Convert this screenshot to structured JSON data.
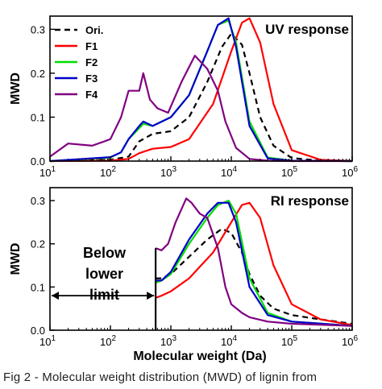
{
  "caption": "Fig 2 - Molecular weight distribution (MWD) of lignin from",
  "x_label": "Molecular weight (Da)",
  "x_ticks": [
    "10",
    "10",
    "10",
    "10",
    "10",
    "10"
  ],
  "x_tick_exponents": [
    "1",
    "2",
    "3",
    "4",
    "5",
    "6"
  ],
  "chart_data": [
    {
      "type": "line",
      "title": "UV response",
      "xlabel": "Molecular weight (Da)",
      "ylabel": "MWD",
      "xscale": "log",
      "xlim": [
        10,
        1000000
      ],
      "ylim": [
        0,
        0.33
      ],
      "yticks": [
        "0.0",
        "0.1",
        "0.2",
        "0.3"
      ],
      "legend": "top-left",
      "series": [
        {
          "name": "Ori.",
          "color": "#000000",
          "dash": true,
          "x": [
            10,
            100,
            200,
            300,
            500,
            1000,
            2000,
            4000,
            7000,
            10000,
            15000,
            20000,
            30000,
            50000,
            100000,
            300000,
            1000000
          ],
          "y": [
            0,
            0.003,
            0.01,
            0.045,
            0.062,
            0.068,
            0.1,
            0.18,
            0.26,
            0.29,
            0.265,
            0.2,
            0.1,
            0.035,
            0.007,
            0.001,
            0
          ]
        },
        {
          "name": "F1",
          "color": "#ff0000",
          "x": [
            10,
            100,
            200,
            300,
            500,
            1000,
            2000,
            5000,
            10000,
            15000,
            20000,
            30000,
            50000,
            100000,
            300000,
            1000000
          ],
          "y": [
            0,
            0.001,
            0.005,
            0.018,
            0.028,
            0.032,
            0.05,
            0.13,
            0.25,
            0.315,
            0.325,
            0.27,
            0.13,
            0.025,
            0.003,
            0
          ]
        },
        {
          "name": "F2",
          "color": "#00dd00",
          "x": [
            10,
            100,
            150,
            200,
            300,
            350,
            500,
            1000,
            2000,
            4000,
            6000,
            9000,
            12000,
            20000,
            40000,
            100000,
            1000000
          ],
          "y": [
            0,
            0.008,
            0.02,
            0.05,
            0.075,
            0.085,
            0.08,
            0.1,
            0.15,
            0.25,
            0.31,
            0.32,
            0.27,
            0.09,
            0.008,
            0.001,
            0
          ]
        },
        {
          "name": "F3",
          "color": "#0000cc",
          "x": [
            10,
            100,
            150,
            200,
            300,
            350,
            500,
            1000,
            2000,
            4000,
            6000,
            9000,
            12000,
            20000,
            40000,
            100000,
            1000000
          ],
          "y": [
            0,
            0.009,
            0.02,
            0.05,
            0.08,
            0.09,
            0.08,
            0.1,
            0.15,
            0.25,
            0.31,
            0.325,
            0.26,
            0.08,
            0.006,
            0.001,
            0
          ]
        },
        {
          "name": "F4",
          "color": "#800080",
          "x": [
            10,
            20,
            50,
            80,
            100,
            150,
            200,
            300,
            350,
            450,
            600,
            900,
            1500,
            2500,
            4000,
            6000,
            8000,
            12000,
            20000,
            40000,
            100000,
            1000000
          ],
          "y": [
            0.01,
            0.04,
            0.035,
            0.045,
            0.05,
            0.1,
            0.16,
            0.16,
            0.2,
            0.14,
            0.12,
            0.11,
            0.18,
            0.24,
            0.21,
            0.16,
            0.09,
            0.03,
            0.005,
            0.001,
            0,
            0
          ]
        }
      ]
    },
    {
      "type": "line",
      "title": "RI response",
      "xlabel": "Molecular weight (Da)",
      "ylabel": "MWD",
      "xscale": "log",
      "xlim": [
        10,
        1000000
      ],
      "ylim": [
        0,
        0.33
      ],
      "yticks": [
        "0.0",
        "0.1",
        "0.2",
        "0.3"
      ],
      "annotation": {
        "lines": [
          "Below",
          "lower",
          "limit"
        ],
        "cutoff_x": 560
      },
      "series": [
        {
          "name": "Ori.",
          "color": "#000000",
          "dash": true,
          "x": [
            560,
            700,
            1000,
            2000,
            4000,
            7000,
            10000,
            15000,
            20000,
            30000,
            50000,
            100000,
            300000,
            1000000
          ],
          "y": [
            0.12,
            0.12,
            0.13,
            0.17,
            0.21,
            0.235,
            0.225,
            0.18,
            0.13,
            0.08,
            0.05,
            0.035,
            0.025,
            0.015
          ]
        },
        {
          "name": "F1",
          "color": "#ff0000",
          "x": [
            560,
            700,
            1000,
            2000,
            5000,
            10000,
            15000,
            20000,
            30000,
            50000,
            100000,
            300000,
            1000000
          ],
          "y": [
            0.075,
            0.08,
            0.09,
            0.12,
            0.18,
            0.25,
            0.29,
            0.295,
            0.26,
            0.15,
            0.06,
            0.025,
            0.012
          ]
        },
        {
          "name": "F2",
          "color": "#00dd00",
          "x": [
            560,
            700,
            1000,
            2000,
            4000,
            6000,
            9000,
            12000,
            20000,
            40000,
            100000,
            1000000
          ],
          "y": [
            0.11,
            0.115,
            0.13,
            0.2,
            0.26,
            0.29,
            0.3,
            0.27,
            0.12,
            0.04,
            0.02,
            0.01
          ]
        },
        {
          "name": "F3",
          "color": "#0000cc",
          "x": [
            560,
            700,
            1000,
            2000,
            4000,
            6000,
            9000,
            12000,
            20000,
            40000,
            100000,
            1000000
          ],
          "y": [
            0.115,
            0.115,
            0.135,
            0.21,
            0.27,
            0.295,
            0.295,
            0.25,
            0.1,
            0.035,
            0.02,
            0.01
          ]
        },
        {
          "name": "F4",
          "color": "#800080",
          "x": [
            560,
            700,
            900,
            1200,
            1800,
            2200,
            3000,
            4000,
            6000,
            8000,
            10000,
            15000,
            20000,
            40000,
            100000,
            1000000
          ],
          "y": [
            0.19,
            0.185,
            0.2,
            0.25,
            0.305,
            0.295,
            0.27,
            0.26,
            0.19,
            0.1,
            0.06,
            0.04,
            0.03,
            0.02,
            0.015,
            0.01
          ]
        }
      ]
    }
  ]
}
